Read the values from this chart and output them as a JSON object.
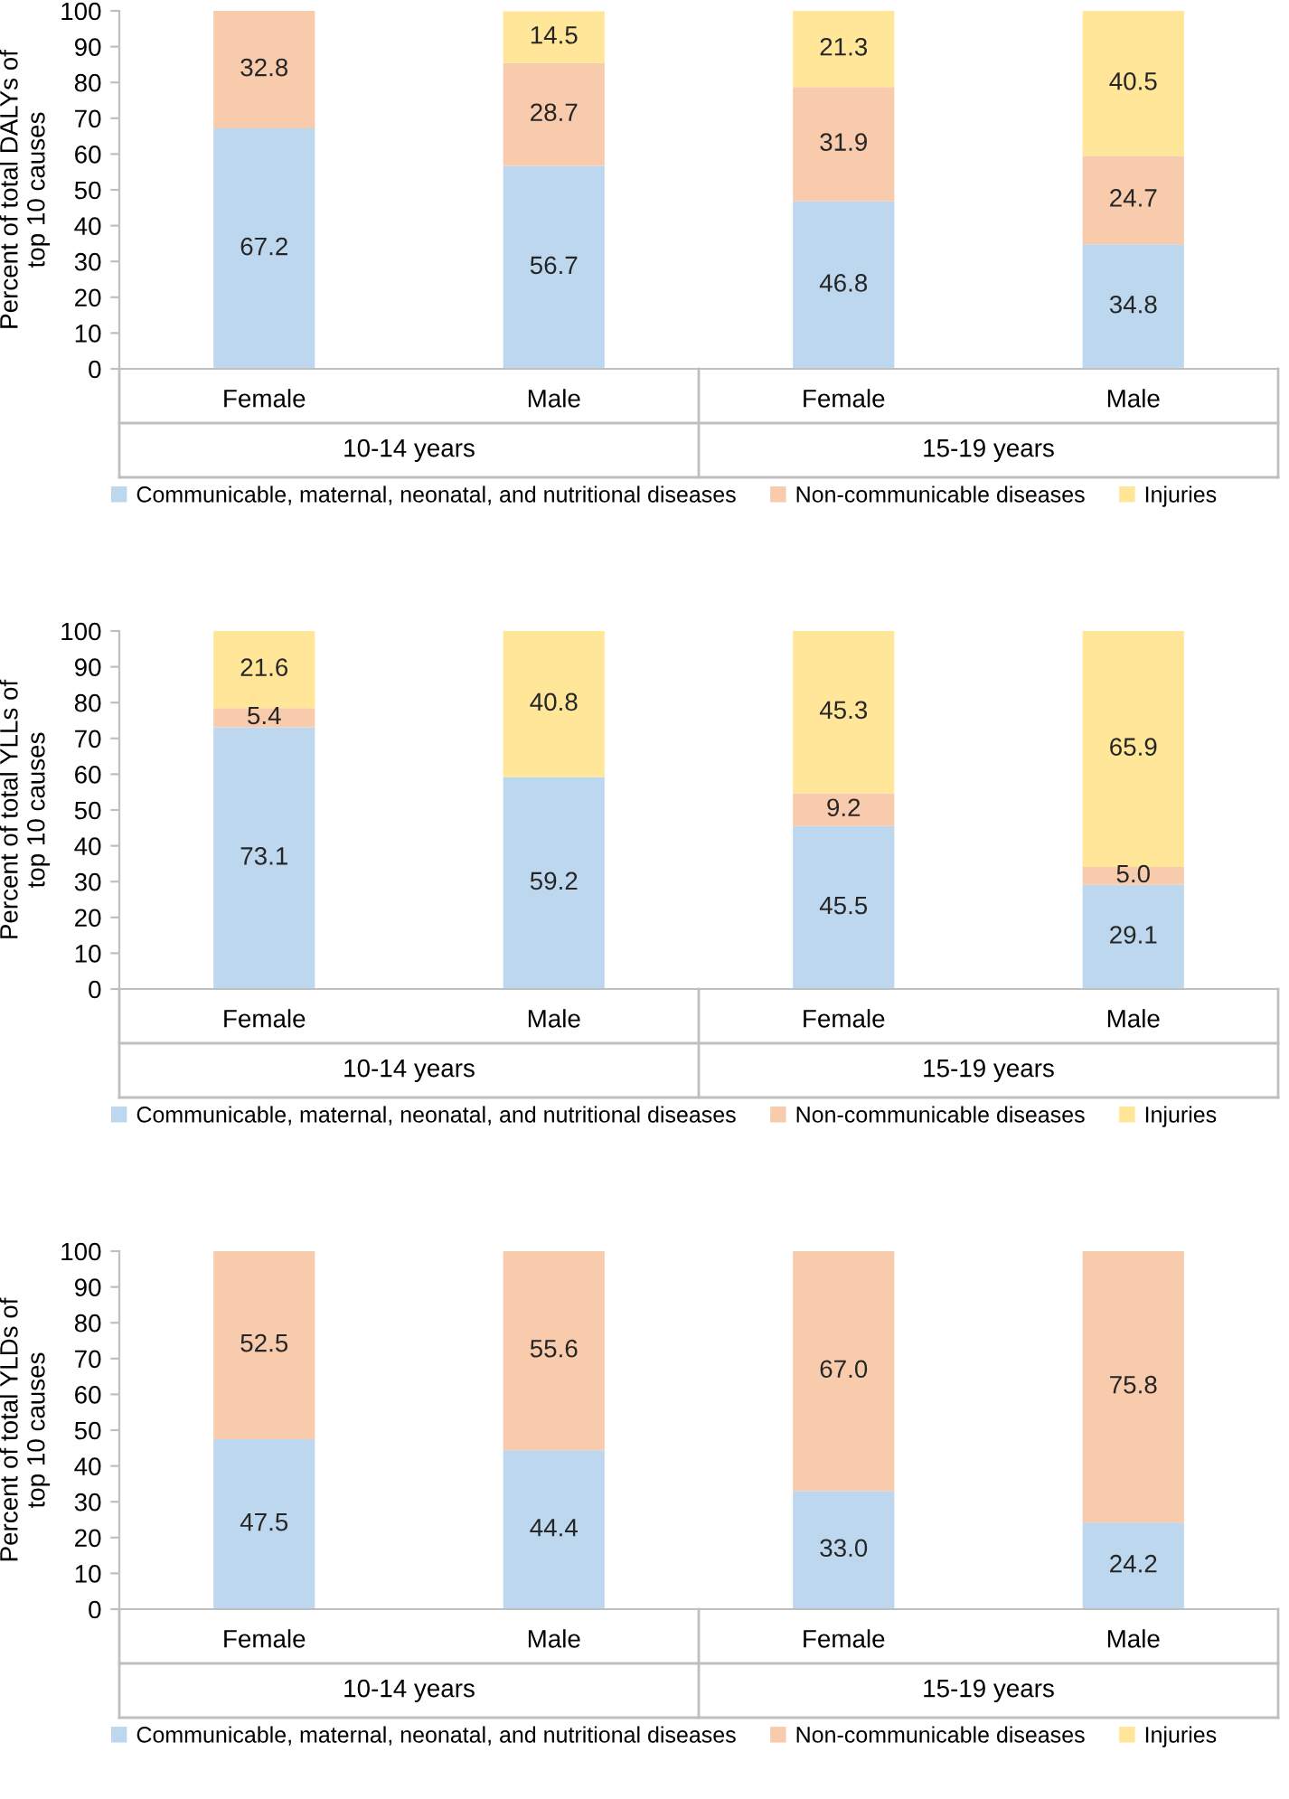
{
  "chart_data": [
    {
      "type": "bar",
      "stacked": true,
      "ylabel": "Percent of total DALYs of\ntop 10 causes",
      "categories": [
        "Female",
        "Male",
        "Female",
        "Male"
      ],
      "annotations": [
        "10-14 years",
        "15-19 years"
      ],
      "ylim": [
        0,
        100
      ],
      "yticks": [
        0,
        10,
        20,
        30,
        40,
        50,
        60,
        70,
        80,
        90,
        100
      ],
      "grid": false,
      "legend": "bottom",
      "series": [
        {
          "name": "Communicable, maternal, neonatal, and nutritional diseases",
          "color": "#bdd7ee",
          "values": [
            67.2,
            56.7,
            46.8,
            34.8
          ],
          "value_labels": [
            "67.2",
            "56.7",
            "46.8",
            "34.8"
          ]
        },
        {
          "name": "Non-communicable diseases",
          "color": "#f8cbad",
          "values": [
            32.8,
            28.7,
            31.9,
            24.7
          ],
          "value_labels": [
            "32.8",
            "28.7",
            "31.9",
            "24.7"
          ]
        },
        {
          "name": "Injuries",
          "color": "#ffe699",
          "values": [
            0,
            14.5,
            21.3,
            40.5
          ],
          "value_labels": [
            null,
            "14.5",
            "21.3",
            "40.5"
          ]
        }
      ]
    },
    {
      "type": "bar",
      "stacked": true,
      "ylabel": "Percent of total YLLs of\ntop 10 causes",
      "categories": [
        "Female",
        "Male",
        "Female",
        "Male"
      ],
      "annotations": [
        "10-14 years",
        "15-19 years"
      ],
      "ylim": [
        0,
        100
      ],
      "yticks": [
        0,
        10,
        20,
        30,
        40,
        50,
        60,
        70,
        80,
        90,
        100
      ],
      "grid": false,
      "legend": "bottom",
      "series": [
        {
          "name": "Communicable, maternal, neonatal, and nutritional diseases",
          "color": "#bdd7ee",
          "values": [
            73.1,
            59.2,
            45.5,
            29.1
          ],
          "value_labels": [
            "73.1",
            "59.2",
            "45.5",
            "29.1"
          ]
        },
        {
          "name": "Non-communicable diseases",
          "color": "#f8cbad",
          "values": [
            5.4,
            0,
            9.2,
            5.0
          ],
          "value_labels": [
            "5.4",
            null,
            "9.2",
            "5.0"
          ]
        },
        {
          "name": "Injuries",
          "color": "#ffe699",
          "values": [
            21.6,
            40.8,
            45.3,
            65.9
          ],
          "value_labels": [
            "21.6",
            "40.8",
            "45.3",
            "65.9"
          ]
        }
      ]
    },
    {
      "type": "bar",
      "stacked": true,
      "ylabel": "Percent of total YLDs of\ntop 10 causes",
      "categories": [
        "Female",
        "Male",
        "Female",
        "Male"
      ],
      "annotations": [
        "10-14 years",
        "15-19 years"
      ],
      "ylim": [
        0,
        100
      ],
      "yticks": [
        0,
        10,
        20,
        30,
        40,
        50,
        60,
        70,
        80,
        90,
        100
      ],
      "grid": false,
      "legend": "bottom",
      "series": [
        {
          "name": "Communicable, maternal, neonatal, and nutritional diseases",
          "color": "#bdd7ee",
          "values": [
            47.5,
            44.4,
            33.0,
            24.2
          ],
          "value_labels": [
            "47.5",
            "44.4",
            "33.0",
            "24.2"
          ]
        },
        {
          "name": "Non-communicable diseases",
          "color": "#f8cbad",
          "values": [
            52.5,
            55.6,
            67.0,
            75.8
          ],
          "value_labels": [
            "52.5",
            "55.6",
            "67.0",
            "75.8"
          ]
        },
        {
          "name": "Injuries",
          "color": "#ffe699",
          "values": [
            0,
            0,
            0,
            0
          ],
          "value_labels": [
            null,
            null,
            null,
            null
          ]
        }
      ]
    }
  ]
}
